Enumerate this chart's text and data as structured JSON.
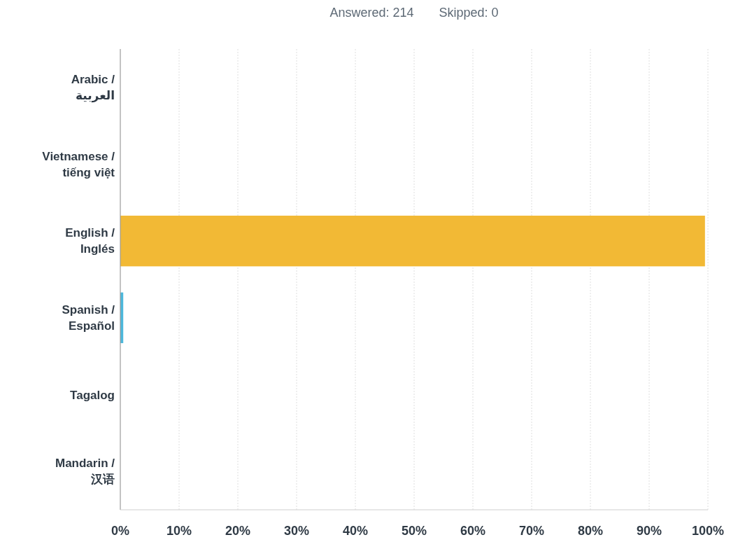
{
  "chart_data": {
    "type": "bar",
    "orientation": "horizontal",
    "annotations": [
      "Answered: 214",
      "Skipped: 0"
    ],
    "categories": [
      "Arabic / العربية",
      "Vietnamese / tiếng việt",
      "English / Inglés",
      "Spanish / Español",
      "Tagalog",
      "Mandarin / 汉语"
    ],
    "values": [
      0,
      0,
      99.5,
      0.5,
      0,
      0
    ],
    "colors": [
      null,
      null,
      "#f2b935",
      "#4db8dc",
      null,
      null
    ],
    "xlim": [
      0,
      100
    ],
    "xticks": [
      {
        "value": 0,
        "label": "0%"
      },
      {
        "value": 10,
        "label": "10%"
      },
      {
        "value": 20,
        "label": "20%"
      },
      {
        "value": 30,
        "label": "30%"
      },
      {
        "value": 40,
        "label": "40%"
      },
      {
        "value": 50,
        "label": "50%"
      },
      {
        "value": 60,
        "label": "60%"
      },
      {
        "value": 70,
        "label": "70%"
      },
      {
        "value": 80,
        "label": "80%"
      },
      {
        "value": 90,
        "label": "90%"
      },
      {
        "value": 100,
        "label": "100%"
      }
    ],
    "grid": "x"
  }
}
